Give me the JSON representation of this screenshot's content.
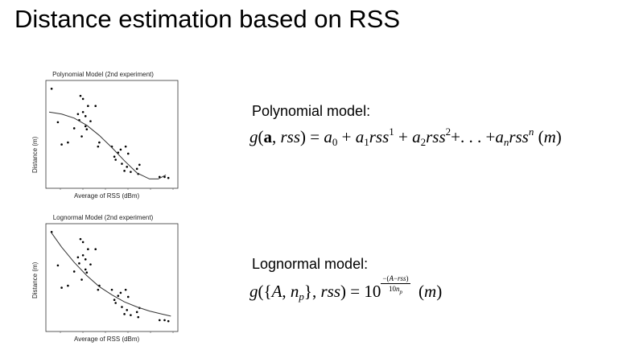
{
  "slide": {
    "title": "Distance estimation based on RSS"
  },
  "chart_data": [
    {
      "type": "scatter",
      "title": "Polynomial Model (2nd experiment)",
      "xlabel": "Average of RSS (dBm)",
      "ylabel": "Distance (m)",
      "series": [
        {
          "values": [
            [
              0.02,
              0.95
            ],
            [
              0.25,
              0.88
            ],
            [
              0.27,
              0.85
            ],
            [
              0.31,
              0.78
            ],
            [
              0.37,
              0.78
            ],
            [
              0.23,
              0.7
            ],
            [
              0.27,
              0.72
            ],
            [
              0.29,
              0.68
            ],
            [
              0.24,
              0.64
            ],
            [
              0.07,
              0.62
            ],
            [
              0.33,
              0.63
            ],
            [
              0.29,
              0.58
            ],
            [
              0.3,
              0.55
            ],
            [
              0.2,
              0.56
            ],
            [
              0.26,
              0.48
            ],
            [
              0.15,
              0.42
            ],
            [
              0.1,
              0.4
            ],
            [
              0.4,
              0.42
            ],
            [
              0.39,
              0.38
            ],
            [
              0.5,
              0.38
            ],
            [
              0.57,
              0.35
            ],
            [
              0.61,
              0.38
            ],
            [
              0.55,
              0.32
            ],
            [
              0.63,
              0.31
            ],
            [
              0.52,
              0.28
            ],
            [
              0.53,
              0.25
            ],
            [
              0.58,
              0.21
            ],
            [
              0.72,
              0.2
            ],
            [
              0.62,
              0.18
            ],
            [
              0.7,
              0.16
            ],
            [
              0.6,
              0.14
            ],
            [
              0.65,
              0.13
            ],
            [
              0.71,
              0.11
            ],
            [
              0.92,
              0.08
            ],
            [
              0.95,
              0.07
            ],
            [
              0.88,
              0.08
            ]
          ]
        },
        {
          "type": "line",
          "curve": [
            [
              0.0,
              0.72
            ],
            [
              0.1,
              0.7
            ],
            [
              0.2,
              0.66
            ],
            [
              0.3,
              0.59
            ],
            [
              0.4,
              0.49
            ],
            [
              0.5,
              0.37
            ],
            [
              0.6,
              0.24
            ],
            [
              0.7,
              0.12
            ],
            [
              0.8,
              0.06
            ],
            [
              0.87,
              0.06
            ],
            [
              0.93,
              0.1
            ]
          ]
        }
      ]
    },
    {
      "type": "scatter",
      "title": "Lognormal Model (2nd experiment)",
      "xlabel": "Average of RSS (dBm)",
      "ylabel": "Distance (m)",
      "series": [
        {
          "values": [
            [
              0.02,
              0.95
            ],
            [
              0.25,
              0.88
            ],
            [
              0.27,
              0.85
            ],
            [
              0.31,
              0.78
            ],
            [
              0.37,
              0.78
            ],
            [
              0.23,
              0.7
            ],
            [
              0.27,
              0.72
            ],
            [
              0.29,
              0.68
            ],
            [
              0.24,
              0.64
            ],
            [
              0.07,
              0.62
            ],
            [
              0.33,
              0.63
            ],
            [
              0.29,
              0.58
            ],
            [
              0.3,
              0.55
            ],
            [
              0.2,
              0.56
            ],
            [
              0.26,
              0.48
            ],
            [
              0.15,
              0.42
            ],
            [
              0.1,
              0.4
            ],
            [
              0.4,
              0.42
            ],
            [
              0.39,
              0.38
            ],
            [
              0.5,
              0.38
            ],
            [
              0.57,
              0.35
            ],
            [
              0.61,
              0.38
            ],
            [
              0.55,
              0.32
            ],
            [
              0.63,
              0.31
            ],
            [
              0.52,
              0.28
            ],
            [
              0.53,
              0.25
            ],
            [
              0.58,
              0.21
            ],
            [
              0.72,
              0.2
            ],
            [
              0.62,
              0.18
            ],
            [
              0.7,
              0.16
            ],
            [
              0.6,
              0.14
            ],
            [
              0.65,
              0.13
            ],
            [
              0.71,
              0.11
            ],
            [
              0.92,
              0.08
            ],
            [
              0.95,
              0.07
            ],
            [
              0.88,
              0.08
            ]
          ]
        },
        {
          "type": "line",
          "curve": [
            [
              0.02,
              0.94
            ],
            [
              0.1,
              0.8
            ],
            [
              0.2,
              0.65
            ],
            [
              0.3,
              0.52
            ],
            [
              0.4,
              0.41
            ],
            [
              0.5,
              0.33
            ],
            [
              0.6,
              0.26
            ],
            [
              0.7,
              0.21
            ],
            [
              0.8,
              0.17
            ],
            [
              0.9,
              0.14
            ],
            [
              0.97,
              0.12
            ]
          ]
        }
      ]
    }
  ],
  "models": {
    "polynomial": {
      "label": "Polynomial model:"
    },
    "lognormal": {
      "label": "Lognormal model:"
    }
  }
}
